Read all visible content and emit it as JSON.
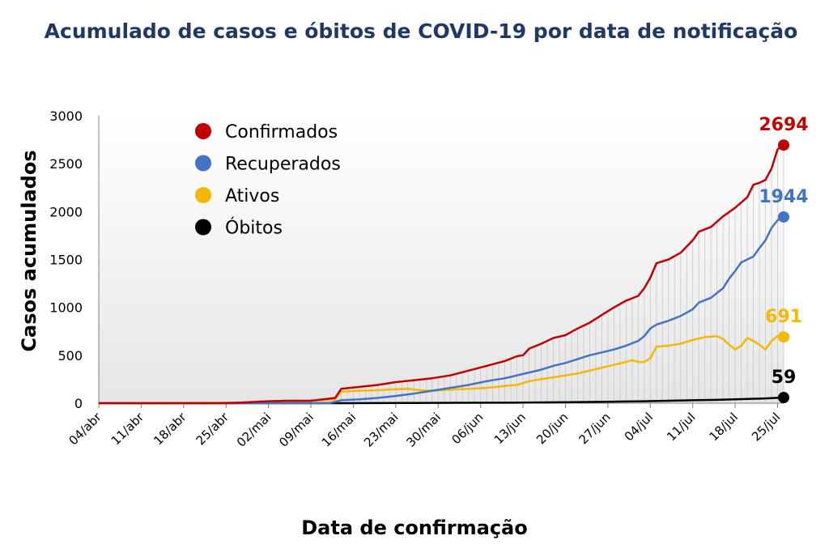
{
  "chart_data": {
    "type": "line",
    "title": "Acumulado de casos e óbitos de COVID-19 por data de notificação",
    "xlabel": "Data de confirmação",
    "ylabel": "Casos acumulados",
    "ylim": [
      0,
      3000
    ],
    "yticks": [
      0,
      500,
      1000,
      1500,
      2000,
      2500,
      3000
    ],
    "xlim": [
      0,
      113
    ],
    "xticks": [
      {
        "day": 0,
        "label": "04/abr"
      },
      {
        "day": 7,
        "label": "11/abr"
      },
      {
        "day": 14,
        "label": "18/abr"
      },
      {
        "day": 21,
        "label": "25/abr"
      },
      {
        "day": 28,
        "label": "02/mai"
      },
      {
        "day": 35,
        "label": "09/mai"
      },
      {
        "day": 42,
        "label": "16/mai"
      },
      {
        "day": 49,
        "label": "23/mai"
      },
      {
        "day": 56,
        "label": "30/mai"
      },
      {
        "day": 63,
        "label": "06/jun"
      },
      {
        "day": 70,
        "label": "13/jun"
      },
      {
        "day": 77,
        "label": "20/jun"
      },
      {
        "day": 84,
        "label": "27/jun"
      },
      {
        "day": 91,
        "label": "04/jul"
      },
      {
        "day": 98,
        "label": "11/jul"
      },
      {
        "day": 105,
        "label": "18/jul"
      },
      {
        "day": 112,
        "label": "25/jul"
      }
    ],
    "grid": false,
    "legend_position": "top-left",
    "series": [
      {
        "name": "Confirmados",
        "color": "#c00000",
        "final_label": "2694",
        "final_value": 2694,
        "points": [
          [
            0,
            0
          ],
          [
            20,
            0
          ],
          [
            23,
            5
          ],
          [
            28,
            20
          ],
          [
            31,
            25
          ],
          [
            35,
            25
          ],
          [
            39,
            55
          ],
          [
            40,
            150
          ],
          [
            43,
            170
          ],
          [
            46,
            190
          ],
          [
            49,
            220
          ],
          [
            52,
            240
          ],
          [
            55,
            260
          ],
          [
            58,
            290
          ],
          [
            61,
            340
          ],
          [
            64,
            390
          ],
          [
            67,
            440
          ],
          [
            69,
            490
          ],
          [
            70,
            500
          ],
          [
            71,
            570
          ],
          [
            73,
            620
          ],
          [
            75,
            680
          ],
          [
            77,
            710
          ],
          [
            79,
            780
          ],
          [
            81,
            840
          ],
          [
            83,
            920
          ],
          [
            85,
            1000
          ],
          [
            87,
            1070
          ],
          [
            89,
            1120
          ],
          [
            90,
            1200
          ],
          [
            91,
            1310
          ],
          [
            92,
            1460
          ],
          [
            94,
            1500
          ],
          [
            96,
            1570
          ],
          [
            98,
            1700
          ],
          [
            99,
            1790
          ],
          [
            101,
            1840
          ],
          [
            103,
            1950
          ],
          [
            105,
            2040
          ],
          [
            107,
            2150
          ],
          [
            108,
            2280
          ],
          [
            109,
            2300
          ],
          [
            110,
            2330
          ],
          [
            111,
            2450
          ],
          [
            112,
            2650
          ],
          [
            113,
            2694
          ]
        ]
      },
      {
        "name": "Recuperados",
        "color": "#4472c4",
        "final_label": "1944",
        "final_value": 1944,
        "points": [
          [
            0,
            0
          ],
          [
            38,
            0
          ],
          [
            40,
            30
          ],
          [
            43,
            40
          ],
          [
            46,
            55
          ],
          [
            49,
            75
          ],
          [
            52,
            100
          ],
          [
            55,
            130
          ],
          [
            58,
            160
          ],
          [
            61,
            190
          ],
          [
            64,
            230
          ],
          [
            67,
            260
          ],
          [
            69,
            290
          ],
          [
            71,
            320
          ],
          [
            73,
            350
          ],
          [
            75,
            390
          ],
          [
            77,
            420
          ],
          [
            79,
            460
          ],
          [
            81,
            500
          ],
          [
            83,
            530
          ],
          [
            85,
            560
          ],
          [
            87,
            600
          ],
          [
            89,
            650
          ],
          [
            90,
            700
          ],
          [
            91,
            780
          ],
          [
            92,
            820
          ],
          [
            94,
            860
          ],
          [
            96,
            910
          ],
          [
            98,
            980
          ],
          [
            99,
            1050
          ],
          [
            101,
            1100
          ],
          [
            103,
            1200
          ],
          [
            104,
            1300
          ],
          [
            105,
            1380
          ],
          [
            106,
            1470
          ],
          [
            107,
            1500
          ],
          [
            108,
            1530
          ],
          [
            109,
            1620
          ],
          [
            110,
            1700
          ],
          [
            111,
            1830
          ],
          [
            112,
            1910
          ],
          [
            113,
            1944
          ]
        ]
      },
      {
        "name": "Ativos",
        "color": "#f4b800",
        "final_label": "691",
        "final_value": 691,
        "points": [
          [
            0,
            0
          ],
          [
            23,
            5
          ],
          [
            28,
            20
          ],
          [
            31,
            25
          ],
          [
            35,
            25
          ],
          [
            39,
            40
          ],
          [
            40,
            120
          ],
          [
            43,
            130
          ],
          [
            46,
            135
          ],
          [
            49,
            145
          ],
          [
            51,
            150
          ],
          [
            53,
            135
          ],
          [
            55,
            130
          ],
          [
            58,
            140
          ],
          [
            61,
            150
          ],
          [
            64,
            160
          ],
          [
            67,
            180
          ],
          [
            69,
            190
          ],
          [
            71,
            230
          ],
          [
            73,
            250
          ],
          [
            75,
            270
          ],
          [
            77,
            290
          ],
          [
            79,
            310
          ],
          [
            81,
            340
          ],
          [
            83,
            370
          ],
          [
            85,
            400
          ],
          [
            87,
            430
          ],
          [
            88,
            450
          ],
          [
            89,
            430
          ],
          [
            90,
            430
          ],
          [
            91,
            470
          ],
          [
            92,
            590
          ],
          [
            94,
            600
          ],
          [
            96,
            620
          ],
          [
            98,
            660
          ],
          [
            100,
            690
          ],
          [
            102,
            700
          ],
          [
            103,
            670
          ],
          [
            104,
            610
          ],
          [
            105,
            560
          ],
          [
            106,
            600
          ],
          [
            107,
            680
          ],
          [
            108,
            650
          ],
          [
            109,
            610
          ],
          [
            110,
            560
          ],
          [
            111,
            650
          ],
          [
            112,
            700
          ],
          [
            113,
            691
          ]
        ]
      },
      {
        "name": "Óbitos",
        "color": "#000000",
        "final_label": "59",
        "final_value": 59,
        "points": [
          [
            0,
            0
          ],
          [
            40,
            0
          ],
          [
            50,
            2
          ],
          [
            60,
            4
          ],
          [
            70,
            6
          ],
          [
            78,
            10
          ],
          [
            85,
            16
          ],
          [
            90,
            20
          ],
          [
            94,
            25
          ],
          [
            98,
            30
          ],
          [
            102,
            35
          ],
          [
            106,
            42
          ],
          [
            110,
            50
          ],
          [
            113,
            59
          ]
        ]
      }
    ]
  }
}
